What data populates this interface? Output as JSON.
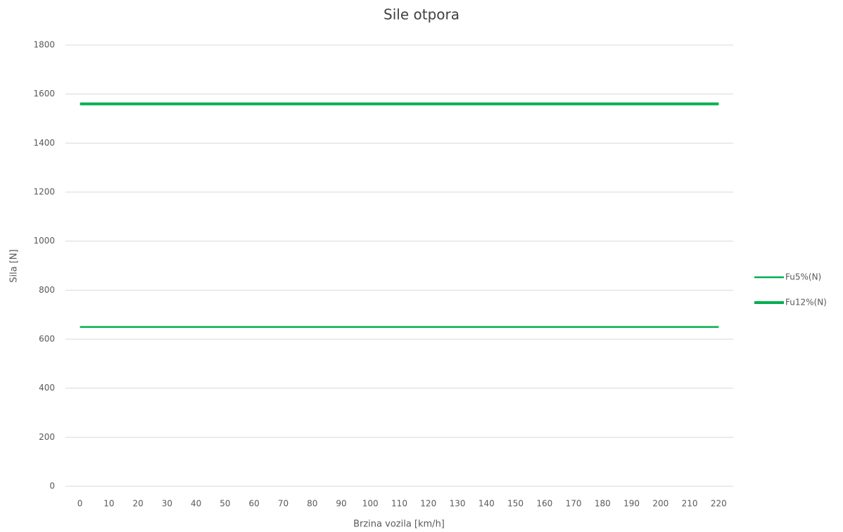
{
  "chart_data": {
    "type": "line",
    "title": "Sile otpora",
    "x_label": "Brzina vozila [km/h]",
    "y_label": "Sila [N]",
    "categories": [
      0,
      10,
      20,
      30,
      40,
      50,
      60,
      70,
      80,
      90,
      100,
      110,
      120,
      130,
      140,
      150,
      160,
      170,
      180,
      190,
      200,
      210,
      220
    ],
    "series": [
      {
        "name": "Fu5%(N)",
        "color": "#00b050",
        "width": 2.5,
        "values": [
          650,
          650,
          650,
          650,
          650,
          650,
          650,
          650,
          650,
          650,
          650,
          650,
          650,
          650,
          650,
          650,
          650,
          650,
          650,
          650,
          650,
          650,
          650
        ]
      },
      {
        "name": "Fu12%(N)",
        "color": "#00b050",
        "width": 4,
        "values": [
          1560,
          1560,
          1560,
          1560,
          1560,
          1560,
          1560,
          1560,
          1560,
          1560,
          1560,
          1560,
          1560,
          1560,
          1560,
          1560,
          1560,
          1560,
          1560,
          1560,
          1560,
          1560,
          1560
        ]
      }
    ],
    "ylim": [
      0,
      1800
    ],
    "yticks": [
      0,
      200,
      400,
      600,
      800,
      1000,
      1200,
      1400,
      1600,
      1800
    ],
    "grid": true,
    "legend": "right"
  }
}
